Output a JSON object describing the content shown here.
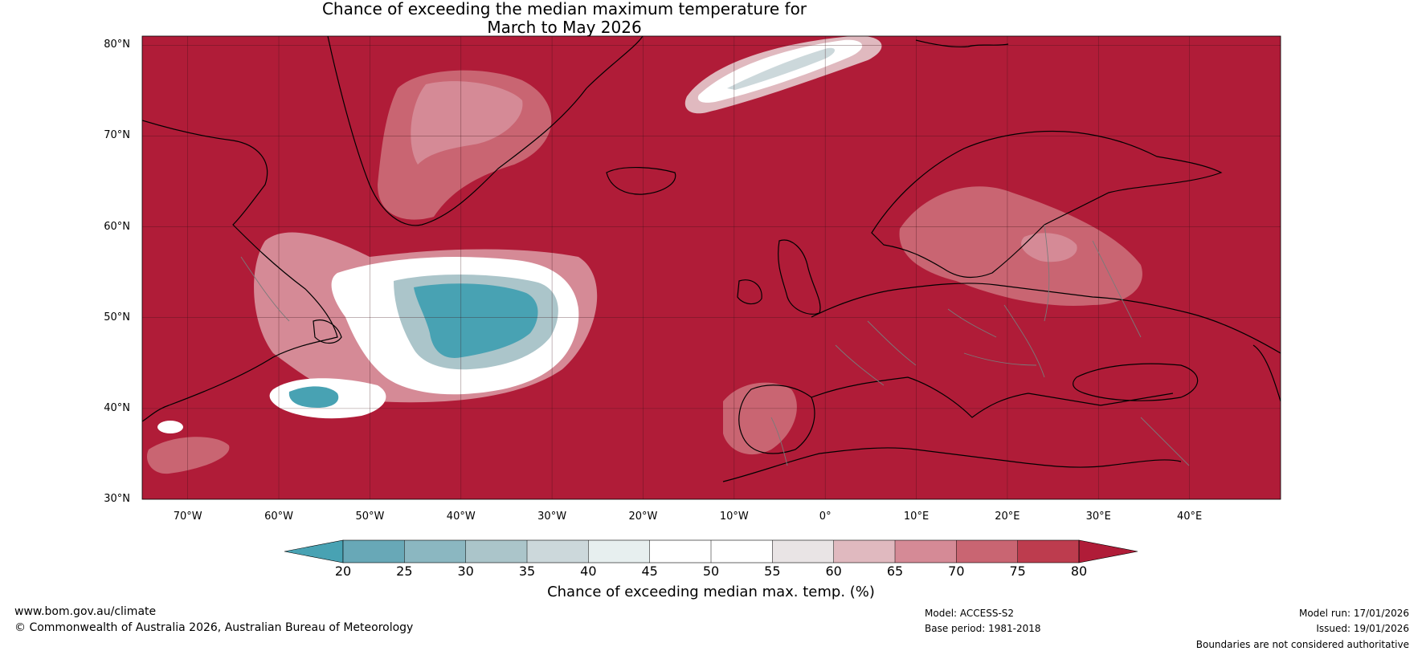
{
  "title": {
    "line1": "Chance of exceeding the median maximum temperature for",
    "line2": "March to May 2026"
  },
  "map": {
    "lat_labels": [
      "80°N",
      "70°N",
      "60°N",
      "50°N",
      "40°N",
      "30°N"
    ],
    "lon_labels": [
      "70°W",
      "60°W",
      "50°W",
      "40°W",
      "30°W",
      "20°W",
      "10°W",
      "0°",
      "10°E",
      "20°E",
      "30°E",
      "40°E"
    ],
    "lat_range": [
      30,
      81
    ],
    "lon_range": [
      -75,
      50
    ],
    "background_color": "#b01c38"
  },
  "colorbar": {
    "ticks": [
      "20",
      "25",
      "30",
      "35",
      "40",
      "45",
      "50",
      "55",
      "60",
      "65",
      "70",
      "75",
      "80"
    ],
    "colors": [
      "#48a2b3",
      "#68a8b7",
      "#8bb7c1",
      "#abc5ca",
      "#ccd8db",
      "#e7efef",
      "#ffffff",
      "#ffffff",
      "#e9e4e5",
      "#e0b9bf",
      "#d58a96",
      "#c96572",
      "#bd3c4e",
      "#b01c38"
    ],
    "label": "Chance of exceeding median max. temp. (%)"
  },
  "footer": {
    "url": "www.bom.gov.au/climate",
    "copyright": "© Commonwealth of Australia 2026, Australian Bureau of Meteorology",
    "model": "Model: ACCESS-S2",
    "base_period": "Base period: 1981-2018",
    "model_run": "Model run: 17/01/2026",
    "issued": "Issued: 19/01/2026",
    "disclaimer": "Boundaries are not considered authoritative"
  }
}
